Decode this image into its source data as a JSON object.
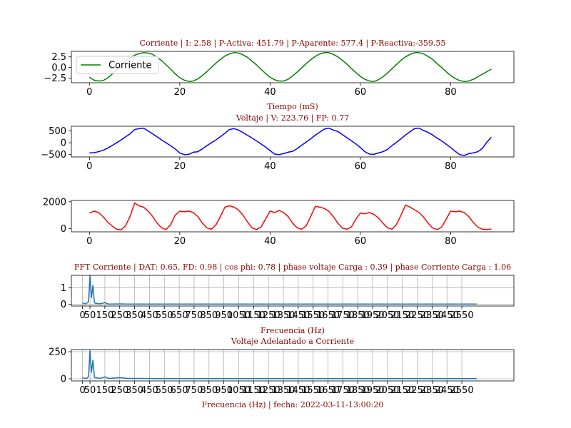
{
  "chart_data": [
    {
      "type": "line",
      "title": "Corriente | I: 2.58  |  P-Activa: 451.79 | P-Aparente: 577.4  |  P-Reactiva:-359.55",
      "xlabel": "Tiempo (mS)",
      "xlim": [
        -4,
        94
      ],
      "ylim": [
        -3.6,
        3.8
      ],
      "xticks": [
        0,
        20,
        40,
        60,
        80
      ],
      "yticks": [
        -2.5,
        0.0,
        2.5
      ],
      "ytick_labels": [
        "−2.5",
        "0.0",
        "2.5"
      ],
      "grid": false,
      "legend": "upper-left",
      "series": [
        {
          "name": "Corriente",
          "color": "#008000",
          "x": [
            0,
            1,
            2,
            3,
            4,
            5,
            6,
            7,
            8,
            9,
            10,
            11,
            12,
            13,
            14,
            15,
            16,
            17,
            18,
            19,
            20,
            21,
            22,
            23,
            24,
            25,
            26,
            27,
            28,
            29,
            30,
            31,
            32,
            33,
            34,
            35,
            36,
            37,
            38,
            39,
            40,
            41,
            42,
            43,
            44,
            45,
            46,
            47,
            48,
            49,
            50,
            51,
            52,
            53,
            54,
            55,
            56,
            57,
            58,
            59,
            60,
            61,
            62,
            63,
            64,
            65,
            66,
            67,
            68,
            69,
            70,
            71,
            72,
            73,
            74,
            75,
            76,
            77,
            78,
            79,
            80,
            81,
            82,
            83,
            84,
            85,
            86,
            87,
            88,
            89
          ],
          "y": [
            -2.3,
            -3.0,
            -3.2,
            -3.1,
            -2.5,
            -1.6,
            -0.6,
            0.4,
            1.4,
            2.3,
            2.9,
            3.3,
            3.5,
            3.4,
            3.1,
            2.4,
            1.6,
            0.6,
            -0.4,
            -1.5,
            -2.4,
            -3.0,
            -3.3,
            -3.2,
            -2.7,
            -1.9,
            -1.0,
            0.0,
            1.0,
            1.9,
            2.7,
            3.2,
            3.5,
            3.4,
            3.0,
            2.4,
            1.5,
            0.6,
            -0.4,
            -1.4,
            -2.3,
            -2.9,
            -3.2,
            -3.2,
            -2.8,
            -2.0,
            -1.1,
            -0.1,
            0.9,
            1.8,
            2.6,
            3.2,
            3.5,
            3.5,
            3.1,
            2.5,
            1.7,
            0.8,
            -0.2,
            -1.2,
            -2.1,
            -2.8,
            -3.2,
            -3.3,
            -2.9,
            -2.2,
            -1.3,
            -0.3,
            0.7,
            1.7,
            2.5,
            3.1,
            3.5,
            3.5,
            3.2,
            2.6,
            1.9,
            0.9,
            0.0,
            -1.0,
            -1.9,
            -2.6,
            -3.1,
            -3.3,
            -3.2,
            -2.8,
            -2.2,
            -1.6,
            -1.0,
            -0.4
          ]
        }
      ]
    },
    {
      "type": "line",
      "title": "Voltaje | V: 223.76 |  FP: 0.77",
      "xlim": [
        -4,
        94
      ],
      "ylim": [
        -600,
        700
      ],
      "xticks": [
        0,
        20,
        40,
        60,
        80
      ],
      "yticks": [
        -500,
        0,
        500
      ],
      "ytick_labels": [
        "−500",
        "0",
        "500"
      ],
      "grid": false,
      "series": [
        {
          "color": "#0000ff",
          "x": [
            0,
            1,
            2,
            3,
            4,
            5,
            6,
            7,
            8,
            9,
            10,
            11,
            12,
            13,
            14,
            15,
            16,
            17,
            18,
            19,
            20,
            21,
            22,
            23,
            24,
            25,
            26,
            27,
            28,
            29,
            30,
            31,
            32,
            33,
            34,
            35,
            36,
            37,
            38,
            39,
            40,
            41,
            42,
            43,
            44,
            45,
            46,
            47,
            48,
            49,
            50,
            51,
            52,
            53,
            54,
            55,
            56,
            57,
            58,
            59,
            60,
            61,
            62,
            63,
            64,
            65,
            66,
            67,
            68,
            69,
            70,
            71,
            72,
            73,
            74,
            75,
            76,
            77,
            78,
            79,
            80,
            81,
            82,
            83,
            84,
            85,
            86,
            87,
            88,
            89
          ],
          "y": [
            -430,
            -420,
            -380,
            -320,
            -230,
            -120,
            0,
            120,
            250,
            380,
            560,
            600,
            620,
            500,
            380,
            250,
            120,
            0,
            -130,
            -260,
            -430,
            -500,
            -490,
            -400,
            -380,
            -260,
            -120,
            0,
            120,
            260,
            400,
            560,
            600,
            540,
            430,
            320,
            200,
            80,
            -50,
            -180,
            -330,
            -480,
            -500,
            -460,
            -400,
            -360,
            -250,
            -100,
            30,
            170,
            320,
            450,
            580,
            620,
            540,
            480,
            350,
            220,
            90,
            -50,
            -200,
            -380,
            -480,
            -490,
            -430,
            -380,
            -280,
            -120,
            20,
            170,
            330,
            470,
            600,
            620,
            520,
            440,
            330,
            200,
            80,
            -60,
            -200,
            -360,
            -500,
            -540,
            -460,
            -430,
            -380,
            -240,
            20,
            240
          ]
        }
      ]
    },
    {
      "type": "line",
      "xlim": [
        -4,
        94
      ],
      "ylim": [
        -250,
        2100
      ],
      "xticks": [
        0,
        20,
        40,
        60,
        80
      ],
      "yticks": [
        0,
        2000
      ],
      "ytick_labels": [
        "0",
        "2000"
      ],
      "grid": false,
      "series": [
        {
          "color": "#ff0000",
          "x": [
            0,
            1,
            2,
            3,
            4,
            5,
            6,
            7,
            8,
            9,
            10,
            11,
            12,
            13,
            14,
            15,
            16,
            17,
            18,
            19,
            20,
            21,
            22,
            23,
            24,
            25,
            26,
            27,
            28,
            29,
            30,
            31,
            32,
            33,
            34,
            35,
            36,
            37,
            38,
            39,
            40,
            41,
            42,
            43,
            44,
            45,
            46,
            47,
            48,
            49,
            50,
            51,
            52,
            53,
            54,
            55,
            56,
            57,
            58,
            59,
            60,
            61,
            62,
            63,
            64,
            65,
            66,
            67,
            68,
            69,
            70,
            71,
            72,
            73,
            74,
            75,
            76,
            77,
            78,
            79,
            80,
            81,
            82,
            83,
            84,
            85,
            86,
            87,
            88,
            89
          ],
          "y": [
            1150,
            1300,
            1200,
            900,
            500,
            200,
            -50,
            -100,
            200,
            900,
            1900,
            1700,
            1600,
            1300,
            900,
            400,
            50,
            -80,
            300,
            1000,
            1300,
            1250,
            1300,
            1200,
            900,
            400,
            50,
            -60,
            250,
            900,
            1600,
            1700,
            1600,
            1400,
            1000,
            500,
            50,
            -80,
            100,
            700,
            1300,
            1200,
            1350,
            1200,
            900,
            400,
            50,
            -50,
            200,
            900,
            1650,
            1600,
            1500,
            1300,
            900,
            400,
            40,
            -60,
            100,
            700,
            1150,
            1100,
            1200,
            1050,
            800,
            400,
            50,
            -50,
            300,
            1000,
            1750,
            1600,
            1400,
            1200,
            850,
            400,
            40,
            -80,
            100,
            700,
            1300,
            1250,
            1300,
            1200,
            900,
            450,
            100,
            -50,
            -80,
            -40
          ]
        }
      ]
    },
    {
      "type": "line",
      "title": "FFT Corriente | DAT: 0.65, FD: 0.98 |   cos phi: 0.78 | phase voltaje Carga : 0.39 | phase Corriente Carga : 1.06",
      "xlabel": "Frecuencia (Hz)",
      "xlim": [
        -75,
        2900
      ],
      "ylim": [
        -0.1,
        1.75
      ],
      "xticks": [
        0,
        50,
        150,
        250,
        350,
        450,
        550,
        650,
        750,
        850,
        950,
        1050,
        1150,
        1250,
        1350,
        1450,
        1550,
        1650,
        1750,
        1850,
        1950,
        2050,
        2150,
        2250,
        2350,
        2450,
        2550
      ],
      "yticks": [
        0,
        1
      ],
      "grid": true,
      "series": [
        {
          "color": "#1f77b4",
          "x": [
            0,
            10,
            20,
            30,
            40,
            50,
            60,
            70,
            80,
            90,
            100,
            110,
            120,
            130,
            140,
            150,
            160,
            170,
            180,
            190,
            200,
            250,
            300,
            400,
            500,
            600,
            700,
            800,
            900,
            1000,
            1200,
            1400,
            1600,
            1800,
            2000,
            2200,
            2400,
            2650
          ],
          "y": [
            0.1,
            0.05,
            0.02,
            0.08,
            0.15,
            1.75,
            0.4,
            1.15,
            0.1,
            0.05,
            0.06,
            0.03,
            0.04,
            0.05,
            0.08,
            0.12,
            0.06,
            0.03,
            0.02,
            0.02,
            0.02,
            0.03,
            0.02,
            0.02,
            0.02,
            0.02,
            0.02,
            0.02,
            0.02,
            0.02,
            0.02,
            0.02,
            0.02,
            0.02,
            0.02,
            0.02,
            0.02,
            0.02
          ]
        }
      ]
    },
    {
      "type": "line",
      "title": "Voltaje Adelantado a Corriente",
      "xlabel": "Frecuencia (Hz)  |    fecha: 2022-03-11-13:00:20",
      "xlim": [
        -75,
        2900
      ],
      "ylim": [
        -20,
        270
      ],
      "xticks": [
        0,
        50,
        150,
        250,
        350,
        450,
        550,
        650,
        750,
        850,
        950,
        1050,
        1150,
        1250,
        1350,
        1450,
        1550,
        1650,
        1750,
        1850,
        1950,
        2050,
        2150,
        2250,
        2350,
        2450,
        2550
      ],
      "yticks": [
        0,
        250
      ],
      "grid": true,
      "series": [
        {
          "color": "#1f77b4",
          "x": [
            0,
            10,
            20,
            30,
            40,
            50,
            60,
            70,
            80,
            90,
            100,
            110,
            120,
            130,
            140,
            150,
            160,
            170,
            180,
            190,
            200,
            250,
            300,
            400,
            500,
            600,
            700,
            800,
            900,
            1000,
            1200,
            1400,
            1600,
            1800,
            2000,
            2200,
            2400,
            2650
          ],
          "y": [
            10,
            5,
            3,
            5,
            20,
            260,
            60,
            170,
            15,
            8,
            8,
            5,
            6,
            8,
            12,
            18,
            10,
            6,
            4,
            4,
            6,
            10,
            4,
            3,
            2,
            2,
            2,
            2,
            2,
            2,
            2,
            2,
            2,
            2,
            2,
            2,
            2,
            2
          ]
        }
      ]
    }
  ]
}
